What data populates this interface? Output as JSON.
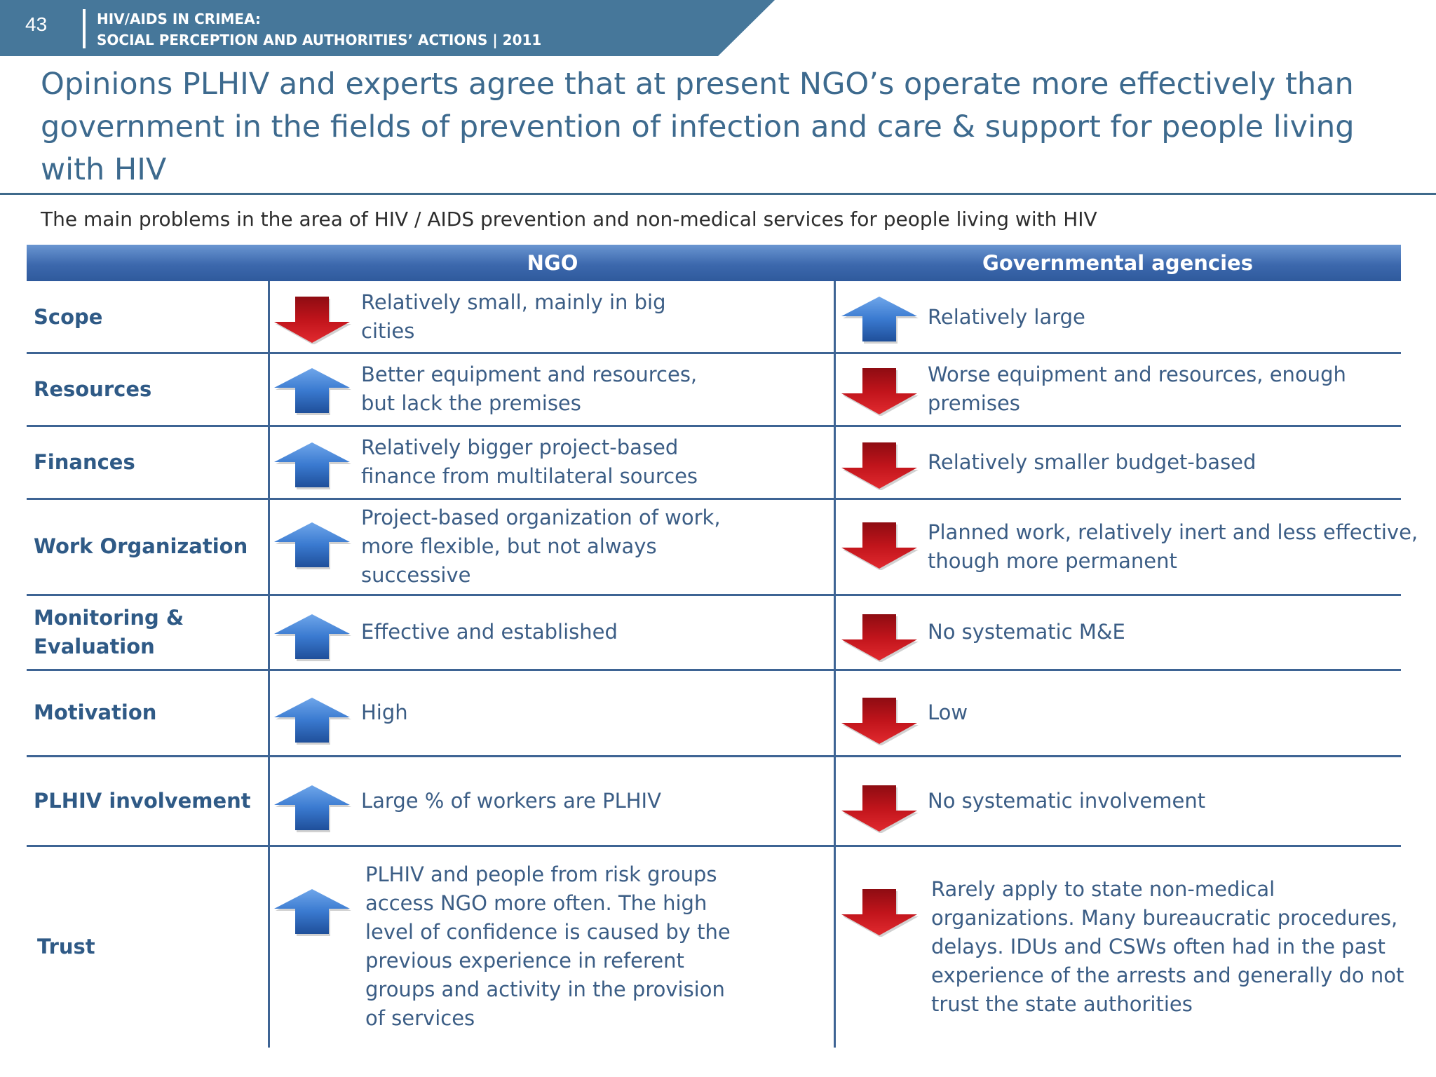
{
  "header": {
    "page_number": "43",
    "line1": "HIV/AIDS IN CRIMEA:",
    "line2": "SOCIAL PERCEPTION AND AUTHORITIES’ ACTIONS  |  2011"
  },
  "title": "Opinions PLHIV and experts agree that at present NGO’s operate more effectively than government  in the fields of prevention of infection and care & support for people living with HIV",
  "subtitle": "The main problems in the area of HIV / AIDS prevention and non-medical services for people living with HIV",
  "table": {
    "columns": [
      "NGO",
      "Governmental agencies"
    ],
    "rows": [
      {
        "label": "Scope",
        "ngo_trend": "down",
        "ngo": "Relatively small, mainly in big cities",
        "gov_trend": "up",
        "gov": "Relatively large"
      },
      {
        "label": "Resources",
        "ngo_trend": "up",
        "ngo": "Better equipment and resources, but lack the premises",
        "gov_trend": "down",
        "gov": "Worse equipment and resources, enough premises"
      },
      {
        "label": "Finances",
        "ngo_trend": "up",
        "ngo": "Relatively bigger project-based finance from multilateral sources",
        "gov_trend": "down",
        "gov": "Relatively smaller budget-based"
      },
      {
        "label": "Work Organization",
        "ngo_trend": "up",
        "ngo": "Project-based organization of work, more flexible, but not always successive",
        "gov_trend": "down",
        "gov": "Planned work, relatively inert and less effective, though more permanent"
      },
      {
        "label": "Monitoring & Evaluation",
        "ngo_trend": "up",
        "ngo": "Effective and established",
        "gov_trend": "down",
        "gov": "No systematic M&E"
      },
      {
        "label": "Motivation",
        "ngo_trend": "up",
        "ngo": "High",
        "gov_trend": "down",
        "gov": "Low"
      },
      {
        "label": "PLHIV involvement",
        "ngo_trend": "up",
        "ngo": "Large % of workers are PLHIV",
        "gov_trend": "down",
        "gov": "No systematic involvement"
      },
      {
        "label": "Trust",
        "ngo_trend": "up",
        "ngo": "PLHIV and people from risk groups access NGO more often. The high level of confidence is caused by the previous experience in referent groups and activity in the provision of services",
        "gov_trend": "down",
        "gov": "Rarely apply to state non-medical organizations. Many bureaucratic procedures, delays. IDUs and CSWs often had in the past experience of the arrests and generally do not trust the state authorities"
      }
    ]
  },
  "colors": {
    "banner": "#46779a",
    "title": "#3d6a8e",
    "up_arrow": "#3a7ad0",
    "down_arrow": "#c0141b",
    "grid": "#3e6494"
  }
}
